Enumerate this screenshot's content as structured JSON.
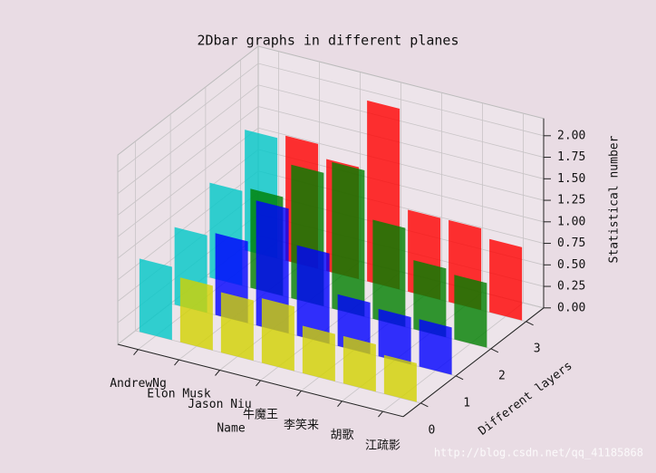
{
  "chart_data": {
    "type": "bar3d",
    "title": "2Dbar graphs in different planes",
    "xlabel": "Name",
    "ylabel": "Different layers",
    "zlabel": "Statistical number",
    "categories": [
      "AndrewNg",
      "Elon Musk",
      "Jason Niu",
      "牛魔王",
      "李笑来",
      "胡歌",
      "江疏影"
    ],
    "xlim": [
      -0.5,
      6.5
    ],
    "ylim": [
      -0.5,
      3.5
    ],
    "yticks": [
      0,
      1,
      2,
      3
    ],
    "zlim": [
      0,
      2.2
    ],
    "zticks": [
      {
        "value": 0,
        "label": "0.00"
      },
      {
        "value": 0.25,
        "label": "0.25"
      },
      {
        "value": 0.5,
        "label": "0.50"
      },
      {
        "value": 0.75,
        "label": "0.75"
      },
      {
        "value": 1,
        "label": "1.00"
      },
      {
        "value": 1.25,
        "label": "1.25"
      },
      {
        "value": 1.5,
        "label": "1.50"
      },
      {
        "value": 1.75,
        "label": "1.75"
      },
      {
        "value": 2,
        "label": "2.00"
      }
    ],
    "grid": true,
    "series": [
      {
        "layer": 0,
        "colors": [
          "#00c8c8",
          "#d2d200",
          "#d2d200",
          "#d2d200",
          "#d2d200",
          "#d2d200",
          "#d2d200"
        ],
        "values": [
          0.85,
          0.75,
          0.7,
          0.75,
          0.55,
          0.55,
          0.45
        ]
      },
      {
        "layer": 1,
        "colors": [
          "#00c8c8",
          "#0000ff",
          "#0000ff",
          "#0000ff",
          "#0000ff",
          "#0000ff",
          "#0000ff"
        ],
        "values": [
          0.9,
          0.95,
          1.45,
          1.05,
          0.6,
          0.55,
          0.55
        ]
      },
      {
        "layer": 2,
        "colors": [
          "#00c8c8",
          "#008000",
          "#008000",
          "#008000",
          "#008000",
          "#008000",
          "#008000"
        ],
        "values": [
          1.1,
          1.15,
          1.55,
          1.7,
          1.15,
          0.8,
          0.75
        ]
      },
      {
        "layer": 3,
        "colors": [
          "#00c8c8",
          "#ff0000",
          "#ff0000",
          "#ff0000",
          "#ff0000",
          "#ff0000",
          "#ff0000"
        ],
        "values": [
          1.4,
          1.45,
          1.3,
          2.1,
          0.95,
          0.95,
          0.85
        ]
      }
    ],
    "watermark": "http://blog.csdn.net/qq_41185868"
  }
}
